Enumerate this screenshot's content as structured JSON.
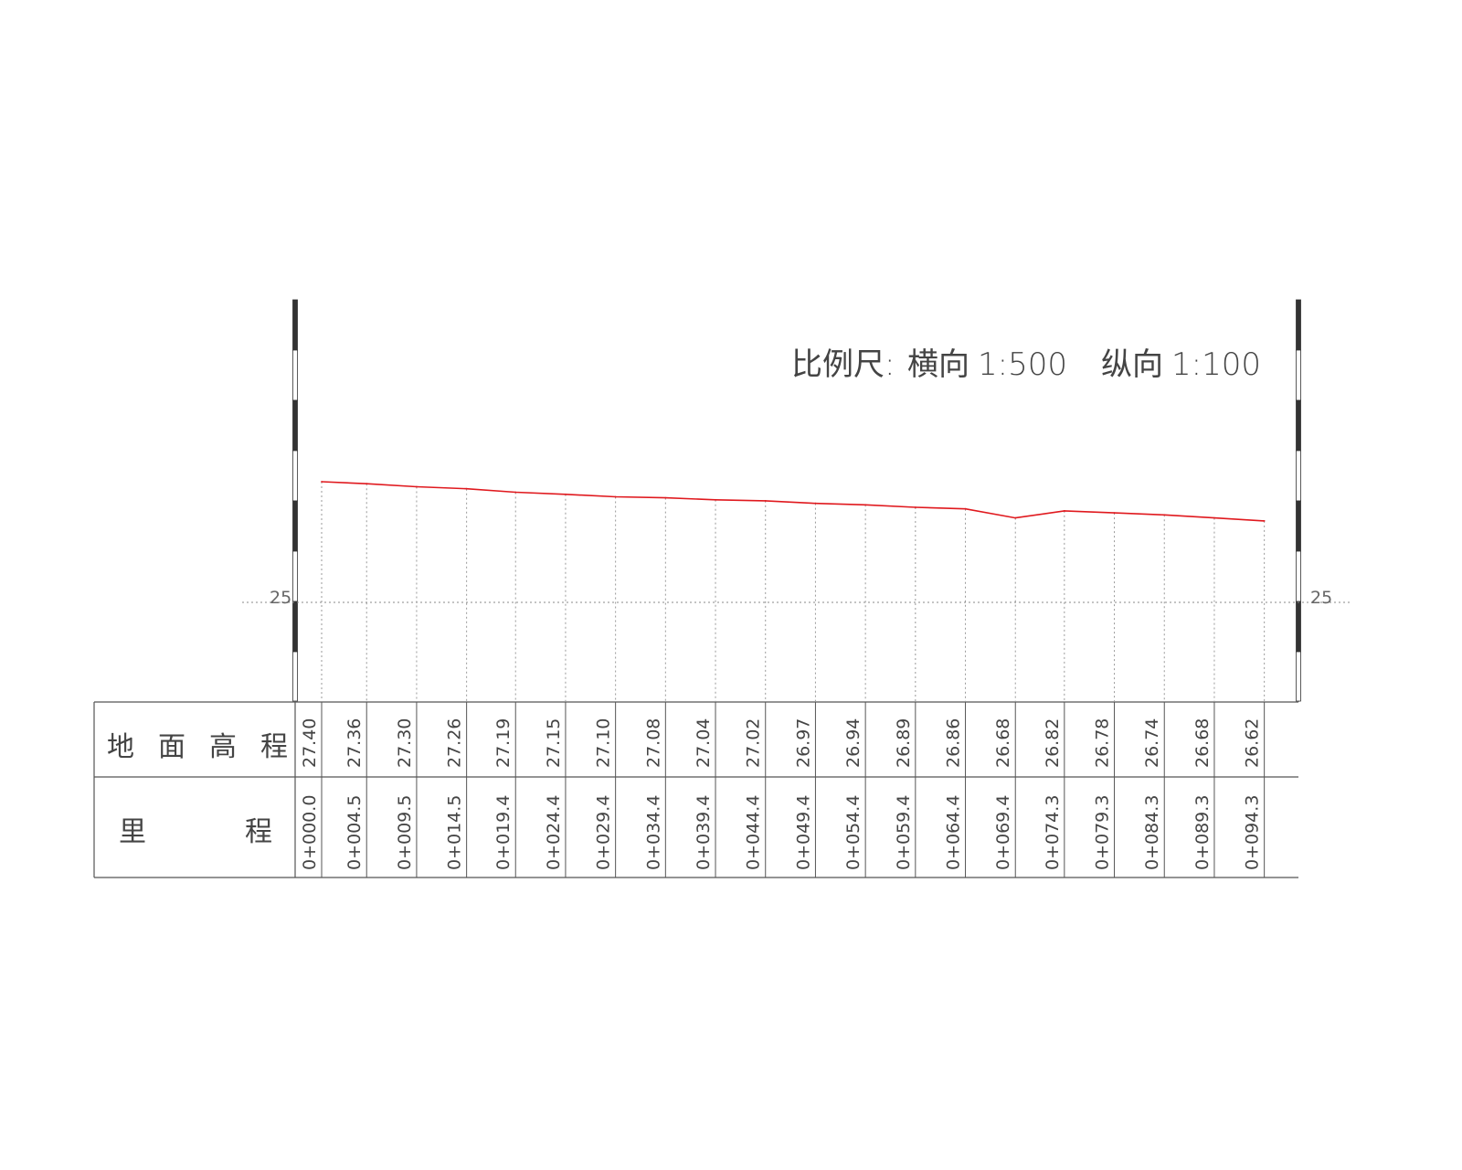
{
  "scale_note": {
    "label": "比例尺:",
    "horizontal_label": "横向",
    "horizontal_value": "1:500",
    "vertical_label": "纵向",
    "vertical_value": "1:100"
  },
  "table": {
    "row_elevation": [
      "地",
      "面",
      "高",
      "程"
    ],
    "row_chainage": [
      "里",
      "程"
    ]
  },
  "chart_data": {
    "type": "line",
    "x_label": "里程",
    "y_label": "地面高程",
    "y_ticks": [
      "25"
    ],
    "y_tick_values": [
      25
    ],
    "y_unit_scale_hint": "vertical scale 1:100",
    "series": [
      {
        "color": "#e0191e",
        "x": [
          0.0,
          4.5,
          9.5,
          14.5,
          19.4,
          24.4,
          29.4,
          34.4,
          39.4,
          44.4,
          49.4,
          54.4,
          59.4,
          64.4,
          69.4,
          74.3,
          79.3,
          84.3,
          89.3,
          94.3
        ],
        "values": [
          27.4,
          27.36,
          27.3,
          27.26,
          27.19,
          27.15,
          27.1,
          27.08,
          27.04,
          27.02,
          26.97,
          26.94,
          26.89,
          26.86,
          26.68,
          26.82,
          26.78,
          26.74,
          26.68,
          26.62
        ]
      }
    ],
    "elevation_labels": [
      "27.40",
      "27.36",
      "27.30",
      "27.26",
      "27.19",
      "27.15",
      "27.10",
      "27.08",
      "27.04",
      "27.02",
      "26.97",
      "26.94",
      "26.89",
      "26.86",
      "26.68",
      "26.82",
      "26.78",
      "26.74",
      "26.68",
      "26.62"
    ],
    "chainage_labels": [
      "0+000.0",
      "0+004.5",
      "0+009.5",
      "0+014.5",
      "0+019.4",
      "0+024.4",
      "0+029.4",
      "0+034.4",
      "0+039.4",
      "0+044.4",
      "0+049.4",
      "0+054.4",
      "0+059.4",
      "0+064.4",
      "0+069.4",
      "0+074.3",
      "0+079.3",
      "0+084.3",
      "0+089.3",
      "0+094.3"
    ]
  }
}
